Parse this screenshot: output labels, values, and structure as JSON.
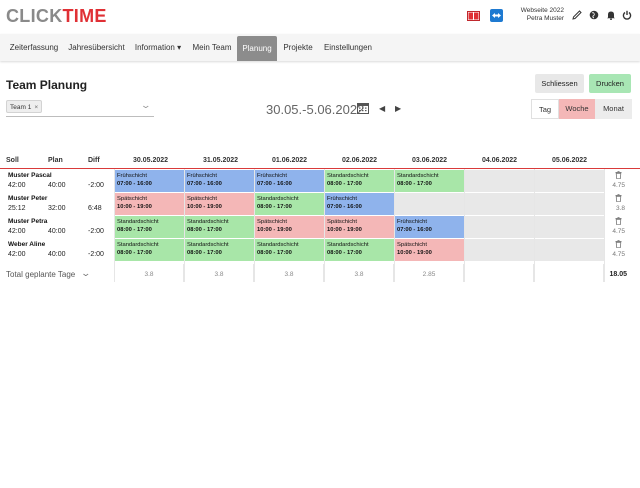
{
  "header": {
    "logo_part1": "CLICK",
    "logo_part2": "TIME",
    "account_name": "Webseite 2022",
    "account_user": "Petra Muster",
    "colors": {
      "brand_red": "#e03035",
      "brand_grey": "#8a8a8a"
    },
    "icons": [
      "book-icon",
      "remote-support-icon",
      "pencil-icon",
      "globe-icon",
      "bell-icon",
      "power-icon"
    ]
  },
  "nav": {
    "items": [
      {
        "label": "Zeiterfassung"
      },
      {
        "label": "Jahresübersicht"
      },
      {
        "label": "Information ▾"
      },
      {
        "label": "Mein Team"
      },
      {
        "label": "Planung"
      },
      {
        "label": "Projekte"
      },
      {
        "label": "Einstellungen"
      }
    ],
    "active": "Planung"
  },
  "page": {
    "title": "Team Planung",
    "close_label": "Schliessen",
    "print_label": "Drucken",
    "team_chip": "Team 1",
    "chip_remove": "×",
    "date_range": "30.05.-5.06.2022",
    "prev": "◀",
    "next": "▶",
    "view_day": "Tag",
    "view_week": "Woche",
    "view_month": "Monat",
    "active_view": "Woche"
  },
  "grid": {
    "col_soll": "Soll",
    "col_plan": "Plan",
    "col_diff": "Diff",
    "days": [
      "30.05.2022",
      "31.05.2022",
      "01.06.2022",
      "02.06.2022",
      "03.06.2022",
      "04.06.2022",
      "05.06.2022"
    ],
    "rows": [
      {
        "name": "Muster Pascal",
        "soll": "42:00",
        "plan": "40:00",
        "diff": "-2:00",
        "total": "4.75",
        "cells": [
          {
            "color": "blue",
            "shift": "Frühschicht",
            "time": "07:00 - 16:00"
          },
          {
            "color": "blue",
            "shift": "Frühschicht",
            "time": "07:00 - 16:00"
          },
          {
            "color": "blue",
            "shift": "Frühschicht",
            "time": "07:00 - 16:00"
          },
          {
            "color": "green",
            "shift": "Standardschicht",
            "time": "08:00 - 17:00"
          },
          {
            "color": "green",
            "shift": "Standardschicht",
            "time": "08:00 - 17:00"
          },
          {
            "color": "empty",
            "shift": "",
            "time": ""
          },
          {
            "color": "empty",
            "shift": "",
            "time": ""
          }
        ]
      },
      {
        "name": "Muster Peter",
        "soll": "25:12",
        "plan": "32:00",
        "diff": "6:48",
        "total": "3.8",
        "cells": [
          {
            "color": "red",
            "shift": "Spätschicht",
            "time": "10:00 - 19:00"
          },
          {
            "color": "red",
            "shift": "Spätschicht",
            "time": "10:00 - 19:00"
          },
          {
            "color": "green",
            "shift": "Standardschicht",
            "time": "08:00 - 17:00"
          },
          {
            "color": "blue",
            "shift": "Frühschicht",
            "time": "07:00 - 16:00"
          },
          {
            "color": "empty",
            "shift": "",
            "time": ""
          },
          {
            "color": "empty",
            "shift": "",
            "time": ""
          },
          {
            "color": "empty",
            "shift": "",
            "time": ""
          }
        ]
      },
      {
        "name": "Muster Petra",
        "soll": "42:00",
        "plan": "40:00",
        "diff": "-2:00",
        "total": "4.75",
        "cells": [
          {
            "color": "green",
            "shift": "Standardschicht",
            "time": "08:00 - 17:00"
          },
          {
            "color": "green",
            "shift": "Standardschicht",
            "time": "08:00 - 17:00"
          },
          {
            "color": "red",
            "shift": "Spätschicht",
            "time": "10:00 - 19:00"
          },
          {
            "color": "red",
            "shift": "Spätschicht",
            "time": "10:00 - 19:00"
          },
          {
            "color": "blue",
            "shift": "Frühschicht",
            "time": "07:00 - 16:00"
          },
          {
            "color": "empty",
            "shift": "",
            "time": ""
          },
          {
            "color": "empty",
            "shift": "",
            "time": ""
          }
        ]
      },
      {
        "name": "Weber Aline",
        "soll": "42:00",
        "plan": "40:00",
        "diff": "-2:00",
        "total": "4.75",
        "cells": [
          {
            "color": "green",
            "shift": "Standardschicht",
            "time": "08:00 - 17:00"
          },
          {
            "color": "green",
            "shift": "Standardschicht",
            "time": "08:00 - 17:00"
          },
          {
            "color": "green",
            "shift": "Standardschicht",
            "time": "08:00 - 17:00"
          },
          {
            "color": "green",
            "shift": "Standardschicht",
            "time": "08:00 - 17:00"
          },
          {
            "color": "red",
            "shift": "Spätschicht",
            "time": "10:00 - 19:00"
          },
          {
            "color": "empty",
            "shift": "",
            "time": ""
          },
          {
            "color": "empty",
            "shift": "",
            "time": ""
          }
        ]
      }
    ],
    "total_label": "Total geplante Tage",
    "day_totals": [
      "3.8",
      "3.8",
      "3.8",
      "3.8",
      "2.85",
      "",
      ""
    ],
    "grand_total": "18.05",
    "shift_colors": {
      "blue": "#8fb3ec",
      "green": "#a8e6a8",
      "red": "#f4b7b7",
      "empty": "#e8e8e8"
    }
  }
}
